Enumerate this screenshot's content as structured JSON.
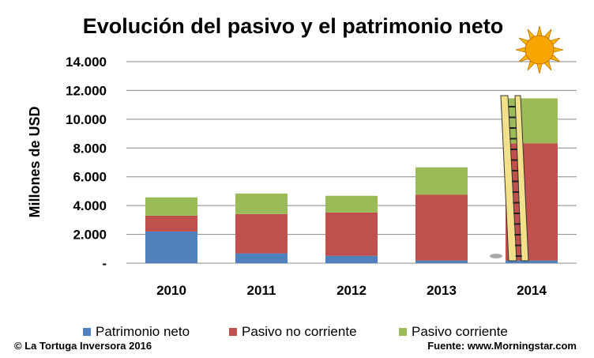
{
  "chart_data": {
    "type": "bar",
    "stacked": true,
    "title": "Evolución del pasivo y el patrimonio neto",
    "ylabel": "Millones de USD",
    "xlabel": "",
    "ylim": [
      0,
      14000
    ],
    "yticks": [
      "-",
      "2.000",
      "4.000",
      "6.000",
      "8.000",
      "10.000",
      "12.000",
      "14.000"
    ],
    "grid": true,
    "legend_position": "bottom",
    "categories": [
      "2010",
      "2011",
      "2012",
      "2013",
      "2014"
    ],
    "series": [
      {
        "name": "Patrimonio neto",
        "color": "#4f81bd",
        "values": [
          2200,
          680,
          510,
          180,
          180
        ]
      },
      {
        "name": "Pasivo no corriente",
        "color": "#c0504d",
        "values": [
          1100,
          2730,
          3010,
          4570,
          8150
        ]
      },
      {
        "name": "Pasivo corriente",
        "color": "#9bbb59",
        "values": [
          1270,
          1430,
          1160,
          1910,
          3120
        ]
      }
    ]
  },
  "footer": {
    "left": "© La Tortuga Inversora 2016",
    "right": "Fuente: www.Morningstar.com"
  }
}
